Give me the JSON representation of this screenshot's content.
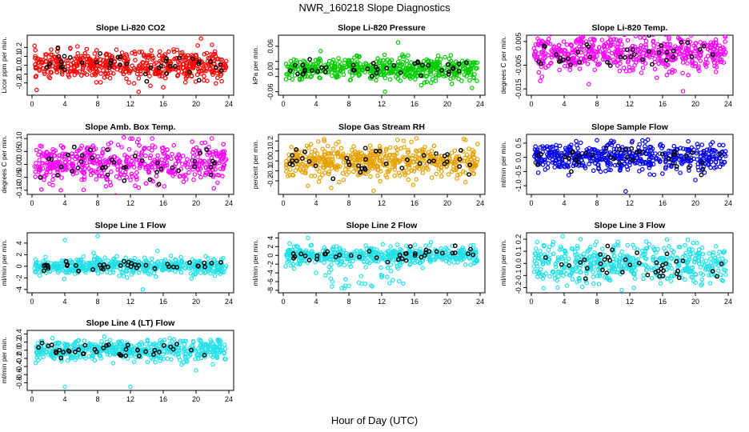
{
  "page": {
    "title": "NWR_160218  Slope Diagnostics",
    "xlabel": "Hour of Day (UTC)"
  },
  "chart_data": [
    {
      "type": "scatter",
      "title": "Slope Li-820 CO2",
      "ylabel": "Licor ppm per min.",
      "xlim": [
        0,
        24
      ],
      "ylim": [
        -0.32,
        0.32
      ],
      "xticks": [
        0,
        4,
        8,
        12,
        16,
        20,
        24
      ],
      "yticks": [
        -0.2,
        -0.1,
        0.0,
        0.1,
        0.2
      ],
      "ytick_labels": [
        "-0.2",
        "-0.1",
        "0.0",
        "0.1",
        "0.2"
      ],
      "color": "#ff0000",
      "spread": 0.08,
      "outliers": [
        [
          13,
          -0.3
        ],
        [
          20.6,
          0.3
        ],
        [
          16,
          -0.25
        ]
      ]
    },
    {
      "type": "scatter",
      "title": "Slope Li-820 Pressure",
      "ylabel": "kPa per min.",
      "xlim": [
        0,
        24
      ],
      "ylim": [
        -0.065,
        0.085
      ],
      "xticks": [
        0,
        4,
        8,
        12,
        16,
        20,
        24
      ],
      "yticks": [
        -0.06,
        -0.02,
        0.0,
        0.02,
        0.06
      ],
      "ytick_labels": [
        "-0.06",
        "",
        "0.00",
        "",
        "0.06"
      ],
      "color": "#00cc00",
      "spread": 0.015,
      "outliers": [
        [
          12.4,
          -0.06
        ],
        [
          14,
          0.07
        ],
        [
          23,
          -0.05
        ]
      ]
    },
    {
      "type": "scatter",
      "title": "Slope Li-820 Temp.",
      "ylabel": "degrees C per min.",
      "xlim": [
        0,
        24
      ],
      "ylim": [
        -0.017,
        0.007
      ],
      "xticks": [
        0,
        4,
        8,
        12,
        16,
        20,
        24
      ],
      "yticks": [
        -0.015,
        -0.005,
        0.005
      ],
      "ytick_labels": [
        "-0.015",
        "-0.005",
        "0.005"
      ],
      "color": "#ff00ff",
      "spread": 0.0035,
      "outliers": [
        [
          7,
          -0.013
        ],
        [
          18.5,
          -0.016
        ],
        [
          7.2,
          0.006
        ]
      ]
    },
    {
      "type": "scatter",
      "title": "Slope Amb. Box Temp.",
      "ylabel": "degrees C per min.",
      "xlim": [
        0,
        24
      ],
      "ylim": [
        -0.11,
        0.11
      ],
      "xticks": [
        0,
        4,
        8,
        12,
        16,
        20,
        24
      ],
      "yticks": [
        -0.1,
        -0.05,
        0.0,
        0.05,
        0.1
      ],
      "ytick_labels": [
        "-0.10",
        "-0.05",
        "0.00",
        "0.05",
        "0.10"
      ],
      "color": "#ff00ff",
      "spread": 0.04,
      "outliers": [
        [
          3.5,
          -0.1
        ],
        [
          12,
          0.1
        ],
        [
          13,
          -0.09
        ]
      ]
    },
    {
      "type": "scatter",
      "title": "Slope Gas Stream RH",
      "ylabel": "percent per min.",
      "xlim": [
        0,
        24
      ],
      "ylim": [
        -0.32,
        0.25
      ],
      "xticks": [
        0,
        4,
        8,
        12,
        16,
        20,
        24
      ],
      "yticks": [
        -0.2,
        -0.1,
        0.0,
        0.1,
        0.2
      ],
      "ytick_labels": [
        "-0.2",
        "-0.1",
        "0.0",
        "0.1",
        "0.2"
      ],
      "color": "#e6a000",
      "spread": 0.08,
      "outliers": [
        [
          5,
          0.2
        ],
        [
          11,
          -0.3
        ],
        [
          22,
          0.22
        ],
        [
          3,
          -0.25
        ]
      ]
    },
    {
      "type": "scatter",
      "title": "Slope Sample Flow",
      "ylabel": "ml/min per min.",
      "xlim": [
        0,
        24
      ],
      "ylim": [
        -1.25,
        0.75
      ],
      "xticks": [
        0,
        4,
        8,
        12,
        16,
        20,
        24
      ],
      "yticks": [
        -1.0,
        -0.5,
        0.0,
        0.5
      ],
      "ytick_labels": [
        "-1.0",
        "-0.5",
        "0.0",
        "0.5"
      ],
      "color": "#0000ee",
      "spread": 0.25,
      "outliers": [
        [
          11.5,
          -1.2
        ],
        [
          8,
          0.6
        ],
        [
          20,
          -0.8
        ]
      ]
    },
    {
      "type": "scatter",
      "title": "Slope Line 1 Flow",
      "ylabel": "ml/min per min.",
      "xlim": [
        0,
        24
      ],
      "ylim": [
        -4.3,
        5.5
      ],
      "xticks": [
        0,
        4,
        8,
        12,
        16,
        20,
        24
      ],
      "yticks": [
        -4,
        -2,
        0,
        2,
        4
      ],
      "ytick_labels": [
        "-4",
        "-2",
        "0",
        "2",
        "4"
      ],
      "color": "#22e0e8",
      "spread": 0.7,
      "outliers": [
        [
          8,
          5.2
        ],
        [
          13.5,
          -4
        ],
        [
          4,
          4.5
        ]
      ]
    },
    {
      "type": "scatter",
      "title": "Slope Line 2 Flow",
      "ylabel": "ml/min per min.",
      "xlim": [
        0,
        24
      ],
      "ylim": [
        -8.2,
        4.8
      ],
      "xticks": [
        0,
        4,
        8,
        12,
        16,
        20,
        24
      ],
      "yticks": [
        -8,
        -6,
        -4,
        -2,
        0,
        2,
        4
      ],
      "ytick_labels": [
        "-8",
        "-6",
        "-4",
        "-2",
        "0",
        "2",
        "4"
      ],
      "color": "#22e0e8",
      "spread": 1.0,
      "outliers": [
        [
          4,
          -4
        ],
        [
          6,
          -6
        ],
        [
          8,
          -7
        ],
        [
          10,
          -6.5
        ],
        [
          12,
          -5
        ],
        [
          14,
          -3
        ],
        [
          18,
          3
        ],
        [
          3,
          4
        ]
      ]
    },
    {
      "type": "scatter",
      "title": "Slope Line 3 Flow",
      "ylabel": "ml/min per min.",
      "xlim": [
        0,
        24
      ],
      "ylim": [
        -0.23,
        0.24
      ],
      "xticks": [
        0,
        4,
        8,
        12,
        16,
        20,
        24
      ],
      "yticks": [
        -0.2,
        -0.1,
        0.0,
        0.1,
        0.2
      ],
      "ytick_labels": [
        "-0.2",
        "-0.1",
        "0.0",
        "0.1",
        "0.2"
      ],
      "color": "#22e0e8",
      "spread": 0.08,
      "outliers": [
        [
          3.2,
          -0.2
        ],
        [
          11,
          -0.22
        ],
        [
          6,
          0.2
        ],
        [
          14,
          0.18
        ]
      ]
    },
    {
      "type": "scatter",
      "title": "Slope Line 4 (LT) Flow",
      "ylabel": "ml/min per min.",
      "xlim": [
        0,
        24
      ],
      "ylim": [
        -0.95,
        0.45
      ],
      "xticks": [
        0,
        4,
        8,
        12,
        16,
        20,
        24
      ],
      "yticks": [
        -0.8,
        -0.6,
        -0.4,
        -0.2,
        0.0,
        0.2,
        0.4
      ],
      "ytick_labels": [
        "-0.8",
        "-0.6",
        "-0.4",
        "-0.2",
        "0.0",
        "0.2",
        "0.4"
      ],
      "color": "#22e0e8",
      "spread": 0.12,
      "outliers": [
        [
          4,
          -0.9
        ],
        [
          12,
          -0.9
        ],
        [
          20,
          -0.5
        ],
        [
          2.5,
          0.3
        ]
      ]
    }
  ]
}
